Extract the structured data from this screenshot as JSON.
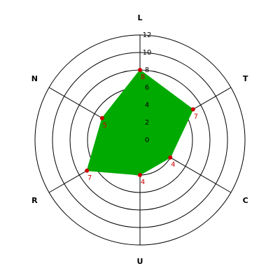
{
  "chart_data": {
    "type": "radar",
    "categories": [
      "L",
      "T",
      "C",
      "U",
      "R",
      "N"
    ],
    "values": [
      8,
      7,
      4,
      4,
      7,
      5
    ],
    "color": "#00aa00",
    "marker_color": "#cc0000",
    "ylim": [
      0,
      12
    ],
    "yticks": [
      0,
      2,
      4,
      6,
      8,
      10,
      12
    ]
  }
}
